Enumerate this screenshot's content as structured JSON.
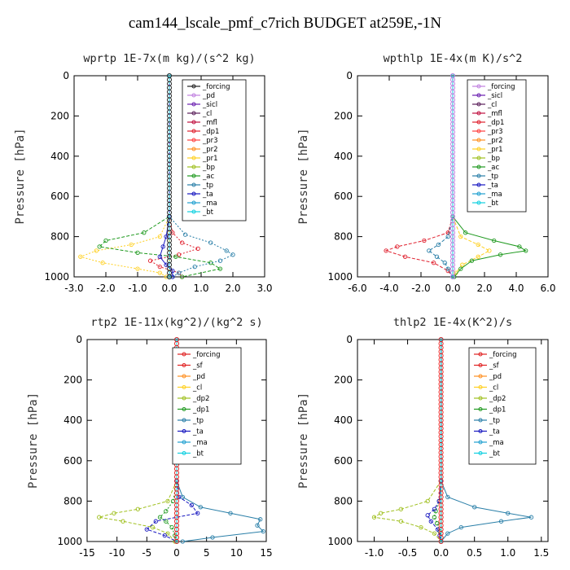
{
  "title": "cam144_lscale_pmf_c7rich  BUDGET at259E,-1N",
  "chart_data": [
    {
      "type": "line",
      "title": "wprtp  1E-7x(m kg)/(s^2 kg)",
      "ylabel": "Pressure [hPa]",
      "xlim": [
        -3.0,
        3.0
      ],
      "ylim": [
        1000,
        0
      ],
      "xticks": [
        "-3.0",
        "-2.0",
        "-1.0",
        "0.0",
        "1.0",
        "2.0",
        "3.0"
      ],
      "yticks": [
        "0",
        "200",
        "400",
        "600",
        "800",
        "1000"
      ],
      "legend_position": "top-right",
      "series": [
        {
          "name": "_forcing",
          "color": "#222222",
          "y": [
            0,
            1000
          ],
          "x": [
            0,
            0
          ]
        },
        {
          "name": "_pd",
          "color": "#c080e0",
          "y": [
            0,
            1000
          ],
          "x": [
            0,
            0
          ]
        },
        {
          "name": "_sicl",
          "color": "#6a1fb0",
          "y": [
            0,
            1000
          ],
          "x": [
            0,
            0
          ]
        },
        {
          "name": "_cl",
          "color": "#5a1f5a",
          "y": [
            0,
            1000
          ],
          "x": [
            0,
            0
          ]
        },
        {
          "name": "_mfl",
          "color": "#c01040",
          "y": [
            0,
            1000
          ],
          "x": [
            0,
            0
          ]
        },
        {
          "name": "_dp1",
          "color": "#e0202e",
          "y": [
            0,
            700,
            780,
            830,
            860,
            890,
            920,
            950,
            980,
            1000
          ],
          "x": [
            0,
            0,
            0.1,
            0.4,
            0.9,
            0.3,
            -0.6,
            -0.3,
            0.3,
            0.4
          ]
        },
        {
          "name": "_pr3",
          "color": "#ff4040",
          "y": [
            0,
            1000
          ],
          "x": [
            0,
            0
          ]
        },
        {
          "name": "_pr2",
          "color": "#ff9020",
          "y": [
            0,
            1000
          ],
          "x": [
            0,
            0
          ]
        },
        {
          "name": "_pr1",
          "color": "#ffd020",
          "y": [
            0,
            700,
            800,
            840,
            870,
            900,
            930,
            960,
            980,
            1000
          ],
          "x": [
            0,
            0,
            -0.3,
            -1.2,
            -2.3,
            -2.8,
            -2.1,
            -1.0,
            -0.3,
            -0.1
          ]
        },
        {
          "name": "_bp",
          "color": "#a0c020",
          "y": [
            0,
            1000
          ],
          "x": [
            0,
            0
          ]
        },
        {
          "name": "_ac",
          "color": "#209a20",
          "y": [
            0,
            700,
            780,
            820,
            850,
            880,
            900,
            930,
            960,
            1000
          ],
          "x": [
            0,
            0,
            -0.8,
            -2.0,
            -2.2,
            -1.0,
            0.2,
            1.3,
            1.6,
            0.4
          ]
        },
        {
          "name": "_tp",
          "color": "#2a7fa8",
          "y": [
            0,
            700,
            790,
            830,
            870,
            890,
            920,
            950,
            980,
            1000
          ],
          "x": [
            0,
            0,
            0.5,
            1.3,
            1.8,
            2.0,
            1.6,
            0.8,
            0.3,
            0.1
          ]
        },
        {
          "name": "_ta",
          "color": "#1818c0",
          "y": [
            0,
            700,
            800,
            850,
            900,
            940,
            970,
            1000
          ],
          "x": [
            0,
            0,
            -0.1,
            -0.2,
            -0.3,
            -0.1,
            0.1,
            0.1
          ]
        },
        {
          "name": "_ma",
          "color": "#20a0d0",
          "y": [
            0,
            1000
          ],
          "x": [
            0,
            0
          ]
        },
        {
          "name": "_bt",
          "color": "#10d0e0",
          "y": [
            0,
            1000
          ],
          "x": [
            0,
            0
          ]
        }
      ]
    },
    {
      "type": "line",
      "title": "wpthlp  1E-4x(m K)/s^2",
      "ylabel": "Pressure [hPa]",
      "xlim": [
        -6.0,
        6.0
      ],
      "ylim": [
        1000,
        0
      ],
      "xticks": [
        "-6.0",
        "-4.0",
        "-2.0",
        "0.0",
        "2.0",
        "4.0",
        "6.0"
      ],
      "yticks": [
        "0",
        "200",
        "400",
        "600",
        "800",
        "1000"
      ],
      "legend_position": "top-right",
      "series": [
        {
          "name": "_forcing",
          "color": "#c080e0",
          "y": [
            0,
            1000
          ],
          "x": [
            0,
            0
          ]
        },
        {
          "name": "_sicl",
          "color": "#6a1fb0",
          "y": [
            0,
            1000
          ],
          "x": [
            0,
            0
          ]
        },
        {
          "name": "_cl",
          "color": "#5a1f5a",
          "y": [
            0,
            1000
          ],
          "x": [
            0,
            0
          ]
        },
        {
          "name": "_mfl",
          "color": "#c01040",
          "y": [
            0,
            1000
          ],
          "x": [
            0,
            0
          ]
        },
        {
          "name": "_dp1",
          "color": "#e0202e",
          "y": [
            0,
            700,
            780,
            820,
            850,
            870,
            900,
            930,
            970,
            1000
          ],
          "x": [
            0,
            0,
            -0.3,
            -1.8,
            -3.5,
            -4.2,
            -3.0,
            -1.2,
            -0.3,
            0
          ]
        },
        {
          "name": "_pr3",
          "color": "#ff4040",
          "y": [
            0,
            1000
          ],
          "x": [
            0,
            0
          ]
        },
        {
          "name": "_pr2",
          "color": "#ff9020",
          "y": [
            0,
            1000
          ],
          "x": [
            0,
            0
          ]
        },
        {
          "name": "_pr1",
          "color": "#ffd020",
          "y": [
            0,
            700,
            800,
            840,
            870,
            900,
            940,
            980,
            1000
          ],
          "x": [
            0,
            0,
            0.5,
            1.6,
            2.3,
            1.6,
            0.6,
            0.2,
            0
          ]
        },
        {
          "name": "_bp",
          "color": "#a0c020",
          "y": [
            0,
            1000
          ],
          "x": [
            0,
            0
          ]
        },
        {
          "name": "_ac",
          "color": "#209a20",
          "y": [
            0,
            700,
            780,
            820,
            850,
            870,
            890,
            920,
            960,
            1000
          ],
          "x": [
            0,
            0,
            0.8,
            2.6,
            4.2,
            4.6,
            3.0,
            1.2,
            0.5,
            0.1
          ]
        },
        {
          "name": "_tp",
          "color": "#2a7fa8",
          "y": [
            0,
            700,
            800,
            840,
            870,
            900,
            930,
            960,
            1000
          ],
          "x": [
            0,
            0,
            -0.3,
            -0.9,
            -1.5,
            -1.0,
            -0.5,
            -0.3,
            0
          ]
        },
        {
          "name": "_ta",
          "color": "#1818c0",
          "y": [
            0,
            1000
          ],
          "x": [
            0,
            0
          ]
        },
        {
          "name": "_ma",
          "color": "#20a0d0",
          "y": [
            0,
            1000
          ],
          "x": [
            0,
            0
          ]
        },
        {
          "name": "_bt",
          "color": "#10d0e0",
          "y": [
            0,
            1000
          ],
          "x": [
            0,
            0
          ]
        }
      ]
    },
    {
      "type": "line",
      "title": "rtp2  1E-11x(kg^2)/(kg^2 s)",
      "ylabel": "Pressure [hPa]",
      "xlim": [
        -15,
        15
      ],
      "ylim": [
        1000,
        0
      ],
      "xticks": [
        "-15",
        "-10",
        "-5",
        "0",
        "5",
        "10",
        "15"
      ],
      "yticks": [
        "0",
        "200",
        "400",
        "600",
        "800",
        "1000"
      ],
      "legend_position": "top-right",
      "series": [
        {
          "name": "_forcing",
          "color": "#e02020",
          "y": [
            0,
            1000
          ],
          "x": [
            0,
            0
          ]
        },
        {
          "name": "_sf",
          "color": "#e02020",
          "y": [
            0,
            1000
          ],
          "x": [
            0,
            0
          ]
        },
        {
          "name": "_pd",
          "color": "#ff9020",
          "y": [
            0,
            1000
          ],
          "x": [
            0,
            0
          ]
        },
        {
          "name": "_cl",
          "color": "#ffd020",
          "y": [
            0,
            1000
          ],
          "x": [
            0,
            0
          ]
        },
        {
          "name": "_dp2",
          "color": "#a0c020",
          "y": [
            0,
            700,
            800,
            840,
            860,
            880,
            900,
            930,
            960,
            1000
          ],
          "x": [
            0,
            0,
            -1.5,
            -6.5,
            -10.5,
            -13.0,
            -9.0,
            -4.0,
            -1.5,
            -0.3
          ]
        },
        {
          "name": "_dp1",
          "color": "#209a20",
          "y": [
            0,
            700,
            800,
            850,
            880,
            900,
            930,
            970,
            1000
          ],
          "x": [
            0,
            0,
            -0.6,
            -1.8,
            -2.8,
            -1.8,
            -0.8,
            -0.3,
            0
          ]
        },
        {
          "name": "_tp",
          "color": "#2a7fa8",
          "y": [
            0,
            700,
            780,
            830,
            860,
            890,
            920,
            950,
            980,
            1000
          ],
          "x": [
            0,
            0,
            1.0,
            4.0,
            9.0,
            14.0,
            13.5,
            14.5,
            6.0,
            1.0
          ]
        },
        {
          "name": "_ta",
          "color": "#1818c0",
          "y": [
            0,
            700,
            780,
            820,
            860,
            900,
            940,
            970,
            1000
          ],
          "x": [
            0,
            0,
            0.4,
            2.5,
            3.5,
            -3.5,
            -5.0,
            -2.0,
            0
          ]
        },
        {
          "name": "_ma",
          "color": "#20a0d0",
          "y": [
            0,
            1000
          ],
          "x": [
            0,
            0
          ]
        },
        {
          "name": "_bt",
          "color": "#10d0e0",
          "y": [
            0,
            1000
          ],
          "x": [
            0,
            0
          ]
        }
      ]
    },
    {
      "type": "line",
      "title": "thlp2  1E-4x(K^2)/s",
      "ylabel": "Pressure [hPa]",
      "xlim": [
        -1.25,
        1.6
      ],
      "ylim": [
        1000,
        0
      ],
      "xticks": [
        "-1.0",
        "-0.5",
        "0.0",
        "0.5",
        "1.0",
        "1.5"
      ],
      "yticks": [
        "0",
        "200",
        "400",
        "600",
        "800",
        "1000"
      ],
      "legend_position": "top-right",
      "series": [
        {
          "name": "_forcing",
          "color": "#e02020",
          "y": [
            0,
            1000
          ],
          "x": [
            0,
            0
          ]
        },
        {
          "name": "_sf",
          "color": "#e02020",
          "y": [
            0,
            1000
          ],
          "x": [
            0,
            0
          ]
        },
        {
          "name": "_pd",
          "color": "#ff9020",
          "y": [
            0,
            1000
          ],
          "x": [
            0,
            0
          ]
        },
        {
          "name": "_cl",
          "color": "#ffd020",
          "y": [
            0,
            1000
          ],
          "x": [
            0,
            0
          ]
        },
        {
          "name": "_dp2",
          "color": "#a0c020",
          "y": [
            0,
            700,
            800,
            840,
            860,
            880,
            900,
            930,
            960,
            1000
          ],
          "x": [
            0,
            0,
            -0.2,
            -0.6,
            -0.9,
            -1.0,
            -0.6,
            -0.3,
            -0.1,
            0
          ]
        },
        {
          "name": "_dp1",
          "color": "#209a20",
          "y": [
            0,
            700,
            800,
            850,
            880,
            910,
            950,
            1000
          ],
          "x": [
            0,
            0,
            -0.03,
            -0.08,
            -0.1,
            -0.06,
            -0.02,
            0
          ]
        },
        {
          "name": "_tp",
          "color": "#2a7fa8",
          "y": [
            0,
            700,
            780,
            830,
            860,
            880,
            900,
            930,
            960,
            1000
          ],
          "x": [
            0,
            0,
            0.1,
            0.5,
            1.0,
            1.35,
            0.9,
            0.3,
            0.1,
            0
          ]
        },
        {
          "name": "_ta",
          "color": "#1818c0",
          "y": [
            0,
            700,
            800,
            840,
            870,
            900,
            940,
            970,
            1000
          ],
          "x": [
            0,
            0,
            -0.03,
            -0.1,
            -0.2,
            -0.15,
            -0.05,
            -0.02,
            0
          ]
        },
        {
          "name": "_ma",
          "color": "#20a0d0",
          "y": [
            0,
            1000
          ],
          "x": [
            0,
            0
          ]
        },
        {
          "name": "_bt",
          "color": "#10d0e0",
          "y": [
            0,
            1000
          ],
          "x": [
            0,
            0
          ]
        }
      ]
    }
  ]
}
